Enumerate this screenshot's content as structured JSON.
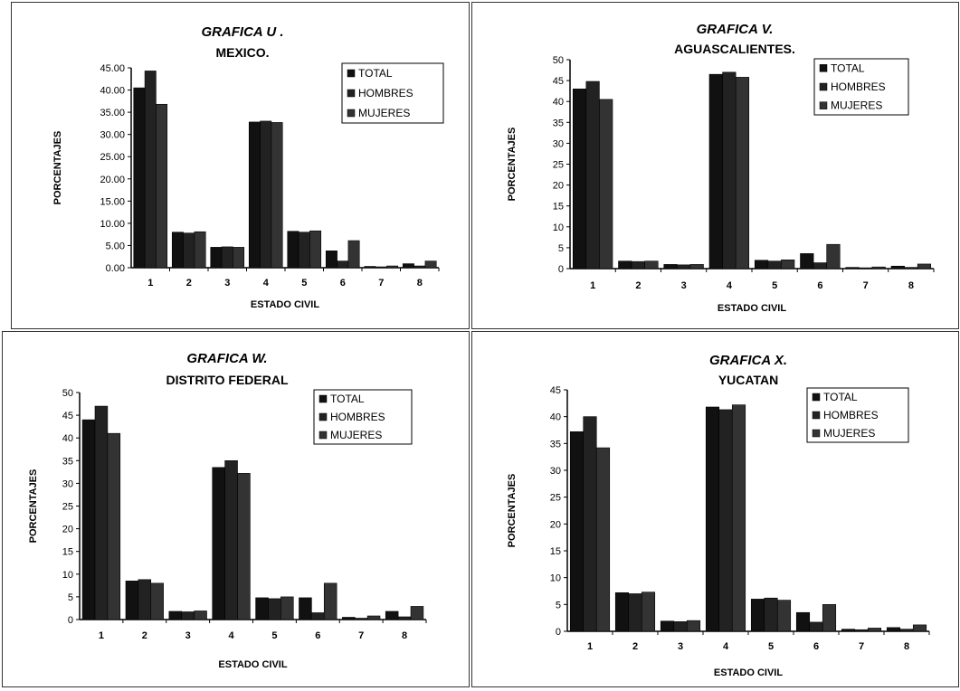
{
  "chart_data": [
    {
      "type": "bar",
      "title": "GRAFICA U .",
      "subtitle": "MEXICO.",
      "xlabel": "ESTADO CIVIL",
      "ylabel": "PORCENTAJES",
      "ylim": [
        0,
        45
      ],
      "yticks": [
        "0.00",
        "5.00",
        "10.00",
        "15.00",
        "20.00",
        "25.00",
        "30.00",
        "35.00",
        "40.00",
        "45.00"
      ],
      "yticks_values": [
        0,
        5,
        10,
        15,
        20,
        25,
        30,
        35,
        40,
        45
      ],
      "categories": [
        "1",
        "2",
        "3",
        "4",
        "5",
        "6",
        "7",
        "8"
      ],
      "legend_position": "top-right",
      "series": [
        {
          "name": "TOTAL",
          "values": [
            40.5,
            8.0,
            4.6,
            32.8,
            8.2,
            3.8,
            0.3,
            0.9
          ],
          "color": "#111111"
        },
        {
          "name": "HOMBRES",
          "values": [
            44.3,
            7.8,
            4.7,
            33.0,
            8.0,
            1.5,
            0.2,
            0.4
          ],
          "color": "#222222"
        },
        {
          "name": "MUJERES",
          "values": [
            36.8,
            8.1,
            4.6,
            32.7,
            8.3,
            6.1,
            0.4,
            1.5
          ],
          "color": "#333333"
        }
      ]
    },
    {
      "type": "bar",
      "title": "GRAFICA V.",
      "subtitle": "AGUASCALIENTES.",
      "xlabel": "ESTADO CIVIL",
      "ylabel": "PORCENTAJES",
      "ylim": [
        0,
        50
      ],
      "yticks": [
        "0",
        "5",
        "10",
        "15",
        "20",
        "25",
        "30",
        "35",
        "40",
        "45",
        "50"
      ],
      "yticks_values": [
        0,
        5,
        10,
        15,
        20,
        25,
        30,
        35,
        40,
        45,
        50
      ],
      "categories": [
        "1",
        "2",
        "3",
        "4",
        "5",
        "6",
        "7",
        "8"
      ],
      "legend_position": "top-right",
      "series": [
        {
          "name": "TOTAL",
          "values": [
            43.0,
            1.8,
            1.0,
            46.5,
            2.0,
            3.6,
            0.3,
            0.6
          ],
          "color": "#111111"
        },
        {
          "name": "HOMBRES",
          "values": [
            44.8,
            1.7,
            0.9,
            47.0,
            1.8,
            1.4,
            0.2,
            0.3
          ],
          "color": "#222222"
        },
        {
          "name": "MUJERES",
          "values": [
            40.5,
            1.8,
            1.0,
            45.8,
            2.1,
            5.8,
            0.4,
            1.1
          ],
          "color": "#333333"
        }
      ]
    },
    {
      "type": "bar",
      "title": "GRAFICA W.",
      "subtitle": "DISTRITO FEDERAL",
      "xlabel": "ESTADO CIVIL",
      "ylabel": "PORCENTAJES",
      "ylim": [
        0,
        50
      ],
      "yticks": [
        "0",
        "5",
        "10",
        "15",
        "20",
        "25",
        "30",
        "35",
        "40",
        "45",
        "50"
      ],
      "yticks_values": [
        0,
        5,
        10,
        15,
        20,
        25,
        30,
        35,
        40,
        45,
        50
      ],
      "categories": [
        "1",
        "2",
        "3",
        "4",
        "5",
        "6",
        "7",
        "8"
      ],
      "legend_position": "top-right",
      "series": [
        {
          "name": "TOTAL",
          "values": [
            44.0,
            8.5,
            1.8,
            33.5,
            4.8,
            4.8,
            0.5,
            1.8
          ],
          "color": "#111111"
        },
        {
          "name": "HOMBRES",
          "values": [
            47.0,
            8.8,
            1.7,
            35.0,
            4.6,
            1.5,
            0.3,
            0.6
          ],
          "color": "#222222"
        },
        {
          "name": "MUJERES",
          "values": [
            41.0,
            8.0,
            1.9,
            32.2,
            5.0,
            8.0,
            0.8,
            2.9
          ],
          "color": "#333333"
        }
      ]
    },
    {
      "type": "bar",
      "title": "GRAFICA X.",
      "subtitle": "YUCATAN",
      "xlabel": "ESTADO CIVIL",
      "ylabel": "PORCENTAJES",
      "ylim": [
        0,
        45
      ],
      "yticks": [
        "0",
        "5",
        "10",
        "15",
        "20",
        "25",
        "30",
        "35",
        "40",
        "45"
      ],
      "yticks_values": [
        0,
        5,
        10,
        15,
        20,
        25,
        30,
        35,
        40,
        45
      ],
      "categories": [
        "1",
        "2",
        "3",
        "4",
        "5",
        "6",
        "7",
        "8"
      ],
      "legend_position": "top-right",
      "series": [
        {
          "name": "TOTAL",
          "values": [
            37.2,
            7.2,
            1.9,
            41.8,
            6.0,
            3.5,
            0.4,
            0.7
          ],
          "color": "#111111"
        },
        {
          "name": "HOMBRES",
          "values": [
            40.0,
            7.0,
            1.8,
            41.3,
            6.2,
            1.7,
            0.3,
            0.4
          ],
          "color": "#222222"
        },
        {
          "name": "MUJERES",
          "values": [
            34.2,
            7.3,
            2.0,
            42.2,
            5.8,
            5.0,
            0.6,
            1.2
          ],
          "color": "#333333"
        }
      ]
    }
  ]
}
